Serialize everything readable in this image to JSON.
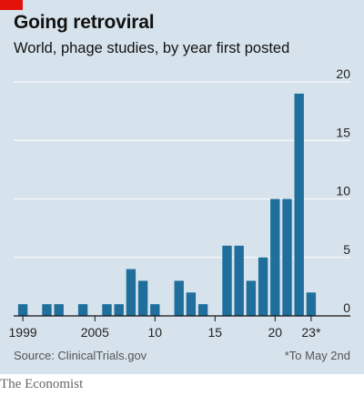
{
  "header": {
    "title": "Going retroviral",
    "subtitle": "World, phage studies, by year first posted"
  },
  "footer": {
    "source": "Source: ClinicalTrials.gov",
    "footnote": "*To May 2nd",
    "brand": "The Economist"
  },
  "colors": {
    "accent": "#e3120b",
    "bar": "#1f6e9c",
    "background": "#d7e3ec"
  },
  "chart_data": {
    "type": "bar",
    "title": "Going retroviral",
    "subtitle": "World, phage studies, by year first posted",
    "xlabel": "",
    "ylabel": "",
    "categories": [
      "1999",
      "2000",
      "2001",
      "2002",
      "2003",
      "2004",
      "2005",
      "2006",
      "2007",
      "2008",
      "2009",
      "2010",
      "2011",
      "2012",
      "2013",
      "2014",
      "2015",
      "2016",
      "2017",
      "2018",
      "2019",
      "2020",
      "2021",
      "2022",
      "2023"
    ],
    "values": [
      1,
      0,
      1,
      1,
      0,
      1,
      0,
      1,
      1,
      4,
      3,
      1,
      0,
      3,
      2,
      1,
      0,
      6,
      6,
      3,
      5,
      10,
      10,
      19,
      2
    ],
    "x_tick_labels": [
      {
        "category": "1999",
        "label": "1999"
      },
      {
        "category": "2005",
        "label": "2005"
      },
      {
        "category": "2010",
        "label": "10"
      },
      {
        "category": "2015",
        "label": "15"
      },
      {
        "category": "2020",
        "label": "20"
      },
      {
        "category": "2023",
        "label": "23*"
      }
    ],
    "y_ticks": [
      0,
      5,
      10,
      15,
      20
    ],
    "ylim": [
      0,
      20
    ],
    "grid": true,
    "y_axis_side": "right"
  }
}
